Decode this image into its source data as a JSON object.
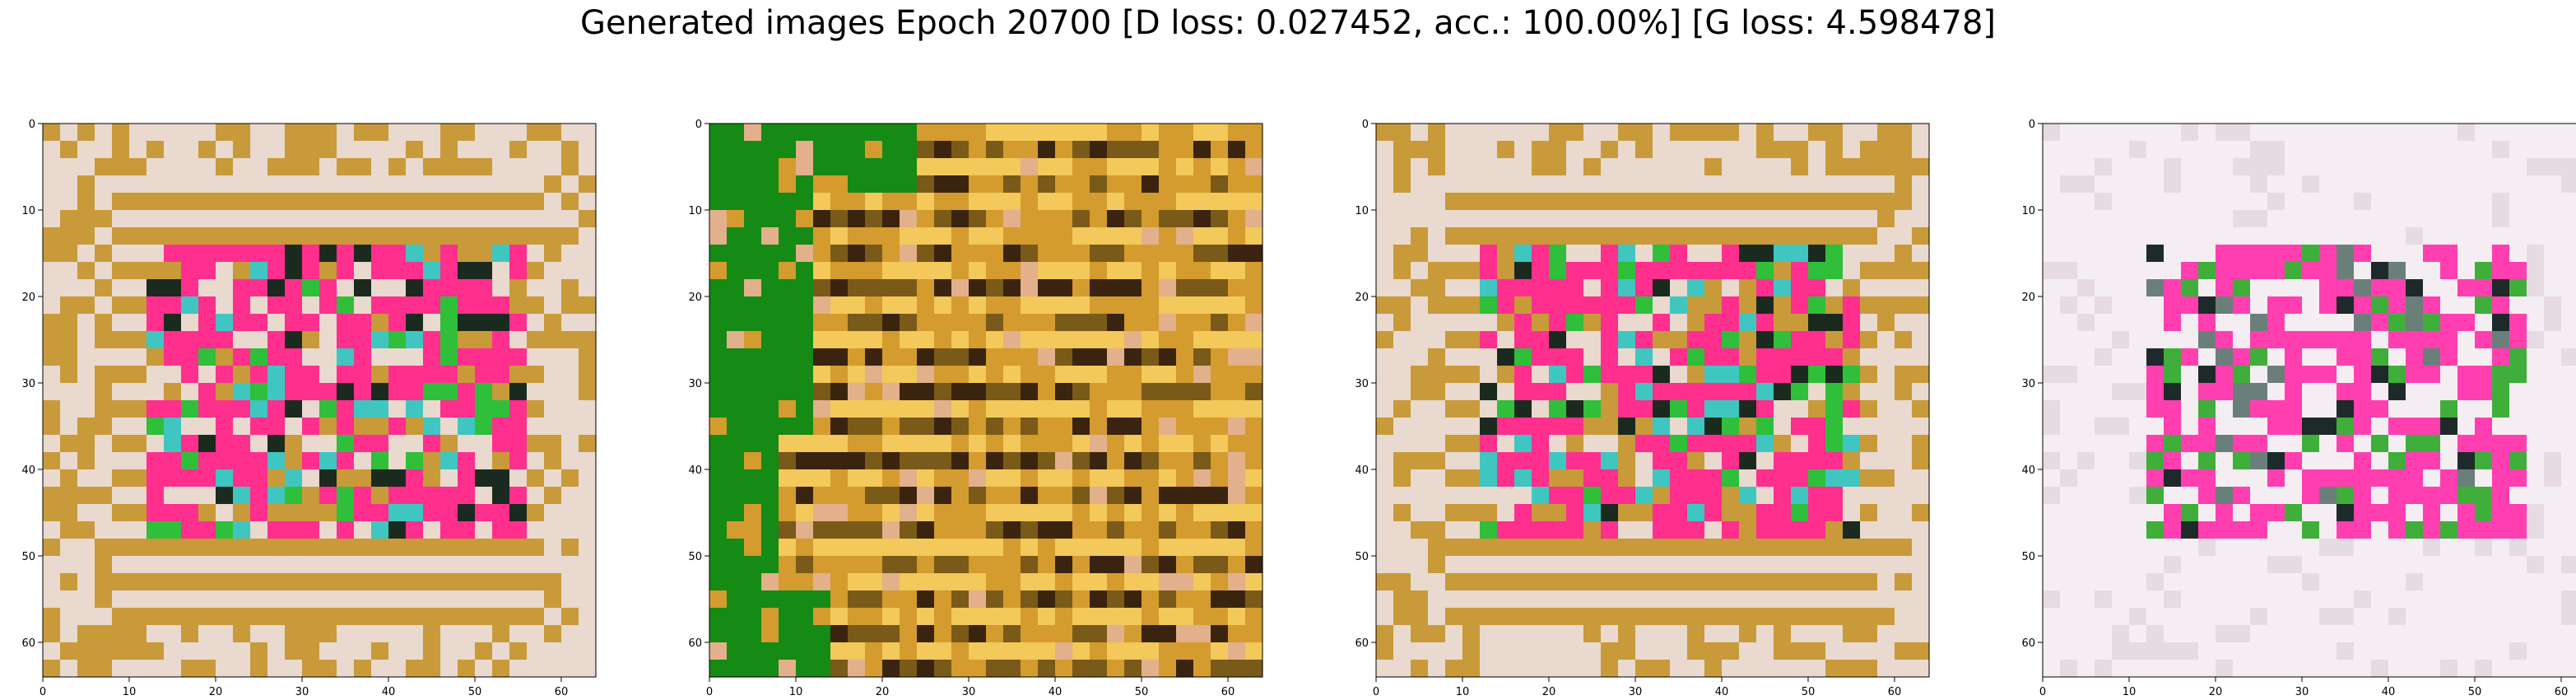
{
  "title": "Generated images Epoch 20700 [D loss: 0.027452, acc.: 100.00%] [G loss: 4.598478]",
  "chart_data": [
    {
      "type": "image",
      "title": "",
      "extent": [
        0,
        64,
        64,
        0
      ],
      "xticks": [
        0,
        10,
        20,
        30,
        40,
        50,
        60
      ],
      "yticks": [
        0,
        10,
        20,
        30,
        40,
        50,
        60
      ],
      "palette": [
        "#c89a3a",
        "#e9d9cf",
        "#ff2f8d",
        "#2fbf3a",
        "#3fc6c0",
        "#1b2a1f"
      ]
    },
    {
      "type": "image",
      "title": "",
      "extent": [
        0,
        64,
        64,
        0
      ],
      "xticks": [
        0,
        10,
        20,
        30,
        40,
        50,
        60
      ],
      "yticks": [
        0,
        10,
        20,
        30,
        40,
        50,
        60
      ],
      "palette": [
        "#d49b2f",
        "#f2c95a",
        "#3a2410",
        "#158a14",
        "#e2b08a",
        "#7a5a18"
      ]
    },
    {
      "type": "image",
      "title": "",
      "extent": [
        0,
        64,
        64,
        0
      ],
      "xticks": [
        0,
        10,
        20,
        30,
        40,
        50,
        60
      ],
      "yticks": [
        0,
        10,
        20,
        30,
        40,
        50,
        60
      ],
      "palette": [
        "#c89a3a",
        "#e9d9cf",
        "#ff2f8d",
        "#2fbf3a",
        "#3fc6c0",
        "#1b2a1f"
      ]
    },
    {
      "type": "image",
      "title": "",
      "extent": [
        0,
        64,
        64,
        0
      ],
      "xticks": [
        0,
        10,
        20,
        30,
        40,
        50,
        60
      ],
      "yticks": [
        0,
        10,
        20,
        30,
        40,
        50,
        60
      ],
      "palette": [
        "#e6dbe2",
        "#f4eef2",
        "#ff3fb0",
        "#3fae3a",
        "#6b7f7a",
        "#1e2a2a"
      ]
    }
  ]
}
